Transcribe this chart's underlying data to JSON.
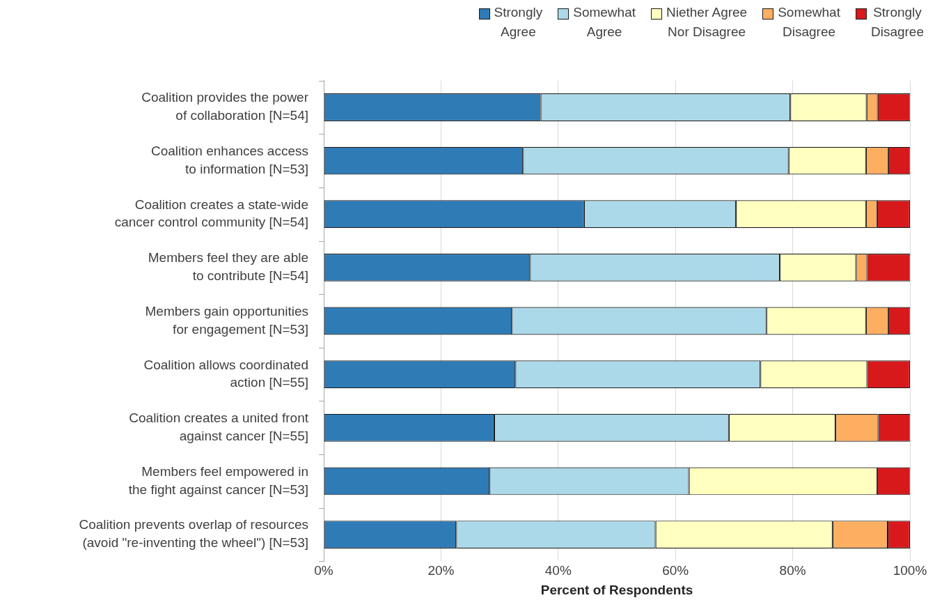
{
  "chart_data": {
    "type": "bar",
    "orientation": "horizontal",
    "stacked": true,
    "xlabel": "Percent of Respondents",
    "categories": [
      "Coalition provides the power\nof collaboration [N=54]",
      "Coalition enhances access\nto information [N=53]",
      "Coalition creates a state-wide\ncancer control community [N=54]",
      "Members feel they are able\nto contribute [N=54]",
      "Members gain opportunities\nfor engagement [N=53]",
      "Coalition allows coordinated\naction [N=55]",
      "Coalition creates a united front\nagainst cancer [N=55]",
      "Members feel empowered in\nthe fight against cancer [N=53]",
      "Coalition prevents overlap of resources\n(avoid \"re-inventing the wheel\") [N=53]"
    ],
    "series": [
      {
        "name": "Strongly\nAgree",
        "color": "#2e7bb6",
        "values": [
          37.0,
          34.0,
          44.4,
          35.2,
          32.1,
          32.7,
          29.1,
          28.3,
          22.6
        ]
      },
      {
        "name": "Somewhat\nAgree",
        "color": "#abd9e9",
        "values": [
          42.6,
          45.3,
          25.9,
          42.6,
          43.4,
          41.8,
          40.0,
          34.0,
          34.0
        ]
      },
      {
        "name": "Niether Agree\nNor Disagree",
        "color": "#ffffbf",
        "values": [
          13.0,
          13.2,
          22.2,
          13.0,
          17.0,
          18.2,
          18.2,
          32.1,
          30.2
        ]
      },
      {
        "name": "Somewhat\nDisagree",
        "color": "#fdae61",
        "values": [
          1.9,
          3.8,
          1.9,
          1.9,
          3.8,
          0,
          7.3,
          0,
          9.4
        ]
      },
      {
        "name": "Strongly\nDisagree",
        "color": "#d7191c",
        "values": [
          5.6,
          3.8,
          5.6,
          7.4,
          3.8,
          7.3,
          5.5,
          5.7,
          3.8
        ]
      }
    ],
    "xlim": [
      0,
      100
    ],
    "xticks": [
      {
        "value": 0,
        "label": "0%"
      },
      {
        "value": 20,
        "label": "20%"
      },
      {
        "value": 40,
        "label": "40%"
      },
      {
        "value": 60,
        "label": "60%"
      },
      {
        "value": 80,
        "label": "80%"
      },
      {
        "value": 100,
        "label": "100%"
      }
    ],
    "grid": "x",
    "legend": "top"
  }
}
